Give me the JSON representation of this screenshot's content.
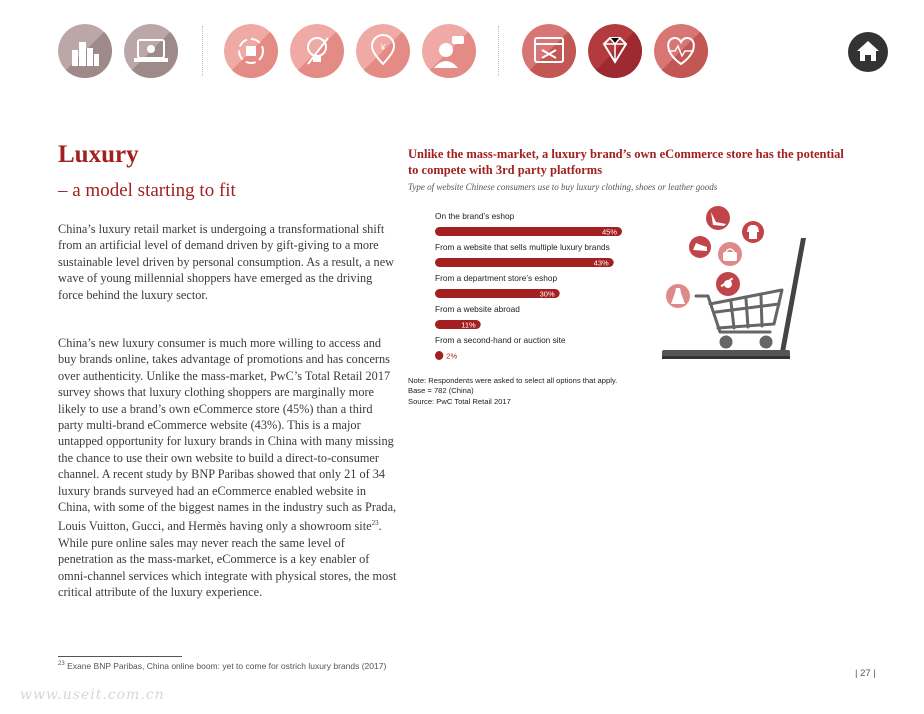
{
  "colors": {
    "accent": "#a32020",
    "bar": "#a32020",
    "icon_red": "#c0444a",
    "icon_pink": "#df8a8a",
    "icon_gray": "#a89494",
    "home": "#333335"
  },
  "nav": {
    "icons": [
      {
        "name": "city-skyline-icon",
        "active": false
      },
      {
        "name": "online-shopping-icon",
        "active": false
      },
      {
        "name": "shopping-cycle-icon",
        "active": false
      },
      {
        "name": "lightbulb-icon",
        "active": false
      },
      {
        "name": "location-pin-icon",
        "active": false
      },
      {
        "name": "customer-chat-icon",
        "active": false
      },
      {
        "name": "checkout-window-icon",
        "active": false
      },
      {
        "name": "diamond-icon",
        "active": true
      },
      {
        "name": "heart-pulse-icon",
        "active": false
      }
    ],
    "home_icon": "home-icon"
  },
  "page": {
    "title": "Luxury",
    "subtitle": "– a model starting to fit",
    "paragraphs": [
      "China’s luxury retail market is undergoing a transformational shift from an artificial level of demand driven by gift-giving to a more sustainable level driven by personal consumption. As a result, a new wave of young millennial shoppers have emerged as the driving force behind the luxury sector.",
      "China’s new luxury consumer is much more willing to access and buy brands online, takes advantage of promotions and has concerns over authenticity. Unlike the mass-market, PwC’s Total Retail 2017 survey shows that luxury clothing shoppers are marginally more likely to use a brand’s own eCommerce store (45%) than a third party multi-brand eCommerce website (43%). This is a major untapped opportunity for luxury brands in China with many missing the chance to use their own website to build a direct-to-consumer channel. A recent study by BNP Paribas showed that only 21 of 34 luxury brands surveyed had an eCommerce enabled website in China, with some of the biggest names in the industry such as Prada, Louis Vuitton, Gucci, and Hermès having only a showroom site"
    ],
    "para2_footnote_ref": "23",
    "para2_tail": ". While pure online sales may never reach the same level of penetration as the mass-market, eCommerce is a key enabler of omni-channel services which integrate with physical stores, the most critical attribute of the luxury experience.",
    "footnote_ref": "23",
    "footnote": "Exane BNP Paribas, China online boom: yet to come for ostrich luxury brands (2017)",
    "page_number": "| 27 |",
    "watermark": "www.useit.com.cn"
  },
  "chart_data": {
    "type": "bar",
    "orientation": "horizontal",
    "title": "Unlike the mass-market, a luxury brand’s own eCommerce store has the potential to compete with 3rd party platforms",
    "subtitle": "Type of website Chinese consumers use to buy luxury clothing, shoes or leather goods",
    "categories": [
      "On the brand’s eshop",
      "From a website that sells multiple luxury brands",
      "From a department store’s eshop",
      "From a website abroad",
      "From a second-hand or auction site"
    ],
    "values": [
      45,
      43,
      30,
      11,
      2
    ],
    "value_labels": [
      "45%",
      "43%",
      "30%",
      "11%",
      "2%"
    ],
    "unit": "%",
    "xlim": [
      0,
      45
    ],
    "notes": [
      "Note: Respondents were asked to select all options that apply.",
      "Base = 782 (China)",
      "Source: PwC Total Retail 2017"
    ]
  },
  "illustration": {
    "icons": [
      "high-heel-icon",
      "shirt-icon",
      "sneaker-icon",
      "handbag-icon",
      "watch-icon",
      "dress-icon",
      "laptop-icon",
      "shopping-cart-icon"
    ]
  }
}
